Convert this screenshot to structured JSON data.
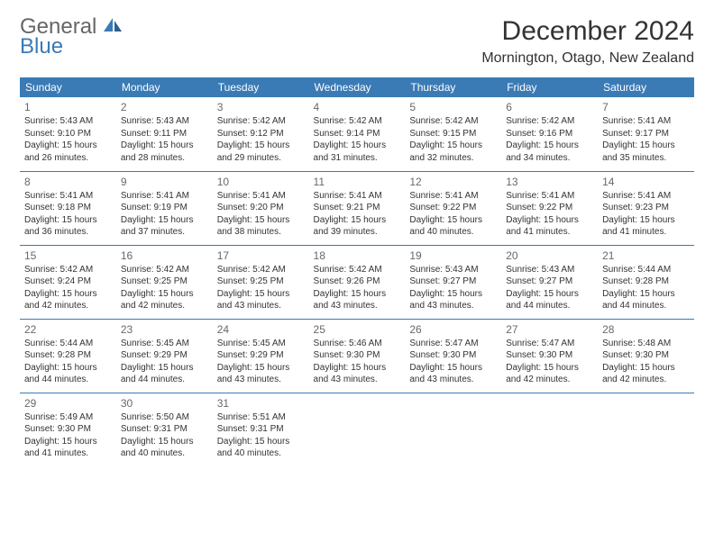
{
  "logo": {
    "general": "General",
    "blue": "Blue"
  },
  "title": "December 2024",
  "location": "Mornington, Otago, New Zealand",
  "colors": {
    "header_bg": "#3a7ab5",
    "header_text": "#ffffff",
    "border": "#3a7ab5",
    "text": "#333333",
    "daynum": "#686868",
    "logo_gray": "#666666",
    "logo_blue": "#3a7ab5",
    "page_bg": "#ffffff"
  },
  "typography": {
    "title_fontsize": 30,
    "location_fontsize": 16,
    "header_fontsize": 12,
    "cell_fontsize": 10,
    "daynum_fontsize": 12
  },
  "days_header": [
    "Sunday",
    "Monday",
    "Tuesday",
    "Wednesday",
    "Thursday",
    "Friday",
    "Saturday"
  ],
  "weeks": [
    [
      {
        "n": "1",
        "sr": "Sunrise: 5:43 AM",
        "ss": "Sunset: 9:10 PM",
        "d1": "Daylight: 15 hours",
        "d2": "and 26 minutes."
      },
      {
        "n": "2",
        "sr": "Sunrise: 5:43 AM",
        "ss": "Sunset: 9:11 PM",
        "d1": "Daylight: 15 hours",
        "d2": "and 28 minutes."
      },
      {
        "n": "3",
        "sr": "Sunrise: 5:42 AM",
        "ss": "Sunset: 9:12 PM",
        "d1": "Daylight: 15 hours",
        "d2": "and 29 minutes."
      },
      {
        "n": "4",
        "sr": "Sunrise: 5:42 AM",
        "ss": "Sunset: 9:14 PM",
        "d1": "Daylight: 15 hours",
        "d2": "and 31 minutes."
      },
      {
        "n": "5",
        "sr": "Sunrise: 5:42 AM",
        "ss": "Sunset: 9:15 PM",
        "d1": "Daylight: 15 hours",
        "d2": "and 32 minutes."
      },
      {
        "n": "6",
        "sr": "Sunrise: 5:42 AM",
        "ss": "Sunset: 9:16 PM",
        "d1": "Daylight: 15 hours",
        "d2": "and 34 minutes."
      },
      {
        "n": "7",
        "sr": "Sunrise: 5:41 AM",
        "ss": "Sunset: 9:17 PM",
        "d1": "Daylight: 15 hours",
        "d2": "and 35 minutes."
      }
    ],
    [
      {
        "n": "8",
        "sr": "Sunrise: 5:41 AM",
        "ss": "Sunset: 9:18 PM",
        "d1": "Daylight: 15 hours",
        "d2": "and 36 minutes."
      },
      {
        "n": "9",
        "sr": "Sunrise: 5:41 AM",
        "ss": "Sunset: 9:19 PM",
        "d1": "Daylight: 15 hours",
        "d2": "and 37 minutes."
      },
      {
        "n": "10",
        "sr": "Sunrise: 5:41 AM",
        "ss": "Sunset: 9:20 PM",
        "d1": "Daylight: 15 hours",
        "d2": "and 38 minutes."
      },
      {
        "n": "11",
        "sr": "Sunrise: 5:41 AM",
        "ss": "Sunset: 9:21 PM",
        "d1": "Daylight: 15 hours",
        "d2": "and 39 minutes."
      },
      {
        "n": "12",
        "sr": "Sunrise: 5:41 AM",
        "ss": "Sunset: 9:22 PM",
        "d1": "Daylight: 15 hours",
        "d2": "and 40 minutes."
      },
      {
        "n": "13",
        "sr": "Sunrise: 5:41 AM",
        "ss": "Sunset: 9:22 PM",
        "d1": "Daylight: 15 hours",
        "d2": "and 41 minutes."
      },
      {
        "n": "14",
        "sr": "Sunrise: 5:41 AM",
        "ss": "Sunset: 9:23 PM",
        "d1": "Daylight: 15 hours",
        "d2": "and 41 minutes."
      }
    ],
    [
      {
        "n": "15",
        "sr": "Sunrise: 5:42 AM",
        "ss": "Sunset: 9:24 PM",
        "d1": "Daylight: 15 hours",
        "d2": "and 42 minutes."
      },
      {
        "n": "16",
        "sr": "Sunrise: 5:42 AM",
        "ss": "Sunset: 9:25 PM",
        "d1": "Daylight: 15 hours",
        "d2": "and 42 minutes."
      },
      {
        "n": "17",
        "sr": "Sunrise: 5:42 AM",
        "ss": "Sunset: 9:25 PM",
        "d1": "Daylight: 15 hours",
        "d2": "and 43 minutes."
      },
      {
        "n": "18",
        "sr": "Sunrise: 5:42 AM",
        "ss": "Sunset: 9:26 PM",
        "d1": "Daylight: 15 hours",
        "d2": "and 43 minutes."
      },
      {
        "n": "19",
        "sr": "Sunrise: 5:43 AM",
        "ss": "Sunset: 9:27 PM",
        "d1": "Daylight: 15 hours",
        "d2": "and 43 minutes."
      },
      {
        "n": "20",
        "sr": "Sunrise: 5:43 AM",
        "ss": "Sunset: 9:27 PM",
        "d1": "Daylight: 15 hours",
        "d2": "and 44 minutes."
      },
      {
        "n": "21",
        "sr": "Sunrise: 5:44 AM",
        "ss": "Sunset: 9:28 PM",
        "d1": "Daylight: 15 hours",
        "d2": "and 44 minutes."
      }
    ],
    [
      {
        "n": "22",
        "sr": "Sunrise: 5:44 AM",
        "ss": "Sunset: 9:28 PM",
        "d1": "Daylight: 15 hours",
        "d2": "and 44 minutes."
      },
      {
        "n": "23",
        "sr": "Sunrise: 5:45 AM",
        "ss": "Sunset: 9:29 PM",
        "d1": "Daylight: 15 hours",
        "d2": "and 44 minutes."
      },
      {
        "n": "24",
        "sr": "Sunrise: 5:45 AM",
        "ss": "Sunset: 9:29 PM",
        "d1": "Daylight: 15 hours",
        "d2": "and 43 minutes."
      },
      {
        "n": "25",
        "sr": "Sunrise: 5:46 AM",
        "ss": "Sunset: 9:30 PM",
        "d1": "Daylight: 15 hours",
        "d2": "and 43 minutes."
      },
      {
        "n": "26",
        "sr": "Sunrise: 5:47 AM",
        "ss": "Sunset: 9:30 PM",
        "d1": "Daylight: 15 hours",
        "d2": "and 43 minutes."
      },
      {
        "n": "27",
        "sr": "Sunrise: 5:47 AM",
        "ss": "Sunset: 9:30 PM",
        "d1": "Daylight: 15 hours",
        "d2": "and 42 minutes."
      },
      {
        "n": "28",
        "sr": "Sunrise: 5:48 AM",
        "ss": "Sunset: 9:30 PM",
        "d1": "Daylight: 15 hours",
        "d2": "and 42 minutes."
      }
    ],
    [
      {
        "n": "29",
        "sr": "Sunrise: 5:49 AM",
        "ss": "Sunset: 9:30 PM",
        "d1": "Daylight: 15 hours",
        "d2": "and 41 minutes."
      },
      {
        "n": "30",
        "sr": "Sunrise: 5:50 AM",
        "ss": "Sunset: 9:31 PM",
        "d1": "Daylight: 15 hours",
        "d2": "and 40 minutes."
      },
      {
        "n": "31",
        "sr": "Sunrise: 5:51 AM",
        "ss": "Sunset: 9:31 PM",
        "d1": "Daylight: 15 hours",
        "d2": "and 40 minutes."
      },
      null,
      null,
      null,
      null
    ]
  ]
}
